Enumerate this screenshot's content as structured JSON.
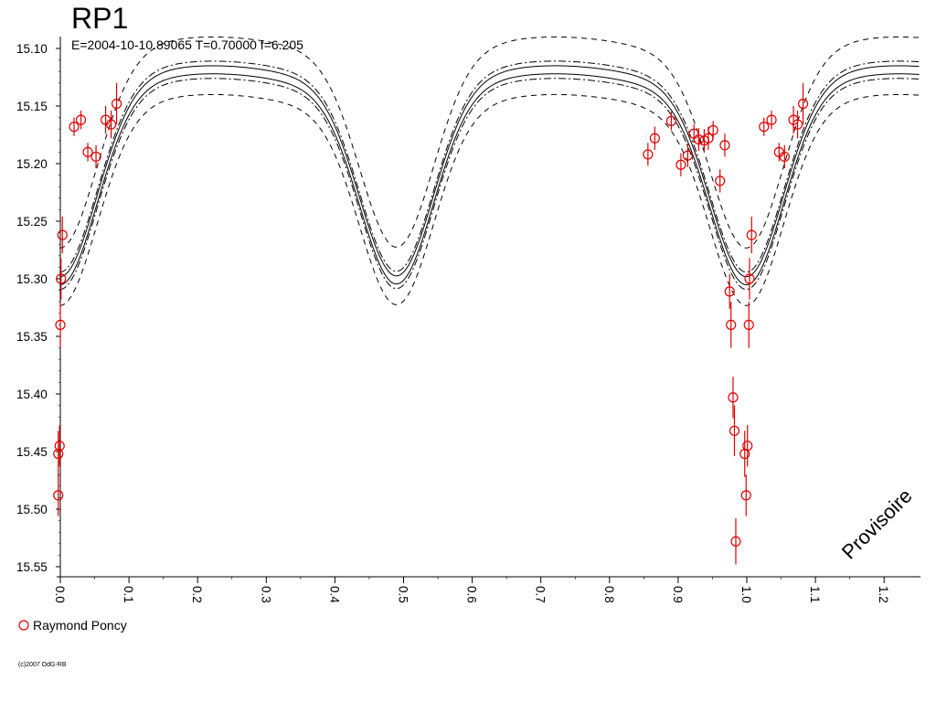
{
  "chart_data": {
    "type": "scatter",
    "title": "RP1",
    "subtitle": "E=2004-10-10.89065    T=0.70000    f=6.205",
    "xlabel": "",
    "ylabel": "",
    "xlim": [
      -0.02,
      1.25
    ],
    "ylim": [
      15.55,
      15.1
    ],
    "y_inverted": true,
    "grid": false,
    "x_ticks": [
      "0.0",
      "0.1",
      "0.2",
      "0.3",
      "0.4",
      "0.5",
      "0.6",
      "0.7",
      "0.8",
      "0.9",
      "1.0",
      "1.1",
      "1.2"
    ],
    "y_ticks": [
      "15.10",
      "15.15",
      "15.20",
      "15.25",
      "15.30",
      "15.35",
      "15.40",
      "15.45",
      "15.50",
      "15.55"
    ],
    "legend": {
      "placement": "bottom-left",
      "entries": [
        "Raymond Poncy"
      ]
    },
    "watermark": "Provisoire",
    "copyright": "(c)2007 OdG-RB",
    "series": [
      {
        "name": "Raymond Poncy",
        "color": "#e00000",
        "marker": "circle-open",
        "points": [
          {
            "x": -0.003,
            "y": 15.488,
            "err": 0.018
          },
          {
            "x": -0.003,
            "y": 15.452,
            "err": 0.02
          },
          {
            "x": -0.001,
            "y": 15.445,
            "err": 0.018
          },
          {
            "x": 0.0,
            "y": 15.34,
            "err": 0.02
          },
          {
            "x": 0.001,
            "y": 15.3,
            "err": 0.018
          },
          {
            "x": 0.003,
            "y": 15.262,
            "err": 0.016
          },
          {
            "x": 0.02,
            "y": 15.168,
            "err": 0.008
          },
          {
            "x": 0.03,
            "y": 15.162,
            "err": 0.008
          },
          {
            "x": 0.04,
            "y": 15.19,
            "err": 0.008
          },
          {
            "x": 0.052,
            "y": 15.194,
            "err": 0.01
          },
          {
            "x": 0.066,
            "y": 15.162,
            "err": 0.012
          },
          {
            "x": 0.074,
            "y": 15.166,
            "err": 0.012
          },
          {
            "x": 0.082,
            "y": 15.148,
            "err": 0.018
          },
          {
            "x": 0.856,
            "y": 15.192,
            "err": 0.01
          },
          {
            "x": 0.866,
            "y": 15.178,
            "err": 0.01
          },
          {
            "x": 0.89,
            "y": 15.163,
            "err": 0.008
          },
          {
            "x": 0.904,
            "y": 15.201,
            "err": 0.01
          },
          {
            "x": 0.914,
            "y": 15.193,
            "err": 0.01
          },
          {
            "x": 0.923,
            "y": 15.174,
            "err": 0.008
          },
          {
            "x": 0.93,
            "y": 15.179,
            "err": 0.01
          },
          {
            "x": 0.938,
            "y": 15.18,
            "err": 0.01
          },
          {
            "x": 0.944,
            "y": 15.178,
            "err": 0.01
          },
          {
            "x": 0.951,
            "y": 15.171,
            "err": 0.008
          },
          {
            "x": 0.961,
            "y": 15.215,
            "err": 0.01
          },
          {
            "x": 0.968,
            "y": 15.184,
            "err": 0.01
          },
          {
            "x": 0.975,
            "y": 15.311,
            "err": 0.015
          },
          {
            "x": 0.977,
            "y": 15.34,
            "err": 0.02
          },
          {
            "x": 0.98,
            "y": 15.403,
            "err": 0.018
          },
          {
            "x": 0.982,
            "y": 15.432,
            "err": 0.022
          },
          {
            "x": 0.984,
            "y": 15.528,
            "err": 0.02
          },
          {
            "x": 0.997,
            "y": 15.452,
            "err": 0.02
          },
          {
            "x": 0.999,
            "y": 15.488,
            "err": 0.018
          },
          {
            "x": 1.001,
            "y": 15.445,
            "err": 0.018
          },
          {
            "x": 1.003,
            "y": 15.34,
            "err": 0.02
          },
          {
            "x": 1.004,
            "y": 15.3,
            "err": 0.018
          },
          {
            "x": 1.007,
            "y": 15.262,
            "err": 0.016
          },
          {
            "x": 1.025,
            "y": 15.168,
            "err": 0.008
          },
          {
            "x": 1.036,
            "y": 15.162,
            "err": 0.008
          },
          {
            "x": 1.047,
            "y": 15.19,
            "err": 0.008
          },
          {
            "x": 1.055,
            "y": 15.194,
            "err": 0.01
          },
          {
            "x": 1.068,
            "y": 15.162,
            "err": 0.012
          },
          {
            "x": 1.074,
            "y": 15.166,
            "err": 0.012
          },
          {
            "x": 1.082,
            "y": 15.148,
            "err": 0.018
          }
        ]
      }
    ],
    "model": {
      "color": "#000000",
      "base_mag": 15.115,
      "x_max_phase": 0.22,
      "max_asym_amp": 0.004,
      "primary_depth": 0.168,
      "secondary_depth": 0.167,
      "eclipse_width": 0.165,
      "curves": [
        {
          "name": "model",
          "style": "solid",
          "shift": 0.0
        },
        {
          "name": "model-alt",
          "style": "solid",
          "shift": 0.007
        },
        {
          "name": "model-upper-inner",
          "style": "dashdot",
          "shift": -0.004
        },
        {
          "name": "model-lower-inner",
          "style": "dashdot",
          "shift": 0.011
        },
        {
          "name": "envelope-upper",
          "style": "dashed",
          "shift": -0.025,
          "depth_delta": 0.0
        },
        {
          "name": "envelope-lower",
          "style": "dashed",
          "shift": 0.025,
          "depth_delta": 0.0
        }
      ]
    }
  }
}
